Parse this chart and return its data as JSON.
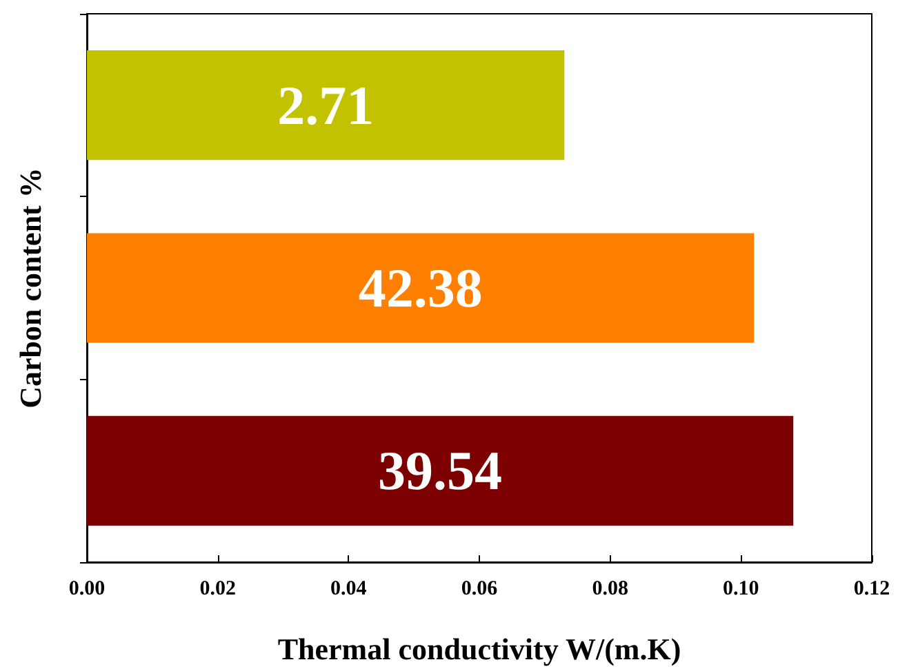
{
  "chart_data": {
    "type": "bar",
    "orientation": "horizontal",
    "xlabel": "Thermal conductivity W/(m.K)",
    "ylabel": "Carbon content %",
    "categories": [
      "2.71",
      "42.38",
      "39.54"
    ],
    "values": [
      0.073,
      0.102,
      0.108
    ],
    "colors": [
      "#c2c200",
      "#ff8000",
      "#7d0000"
    ],
    "xlim": [
      0,
      0.12
    ],
    "xticks": [
      {
        "value": 0,
        "label": "0.00"
      },
      {
        "value": 0.02,
        "label": "0.02"
      },
      {
        "value": 0.04,
        "label": "0.04"
      },
      {
        "value": 0.06,
        "label": "0.06"
      },
      {
        "value": 0.08,
        "label": "0.08"
      },
      {
        "value": 0.1,
        "label": "0.10"
      },
      {
        "value": 0.12,
        "label": "0.12"
      }
    ],
    "tick_labels": "x",
    "grid": false
  }
}
